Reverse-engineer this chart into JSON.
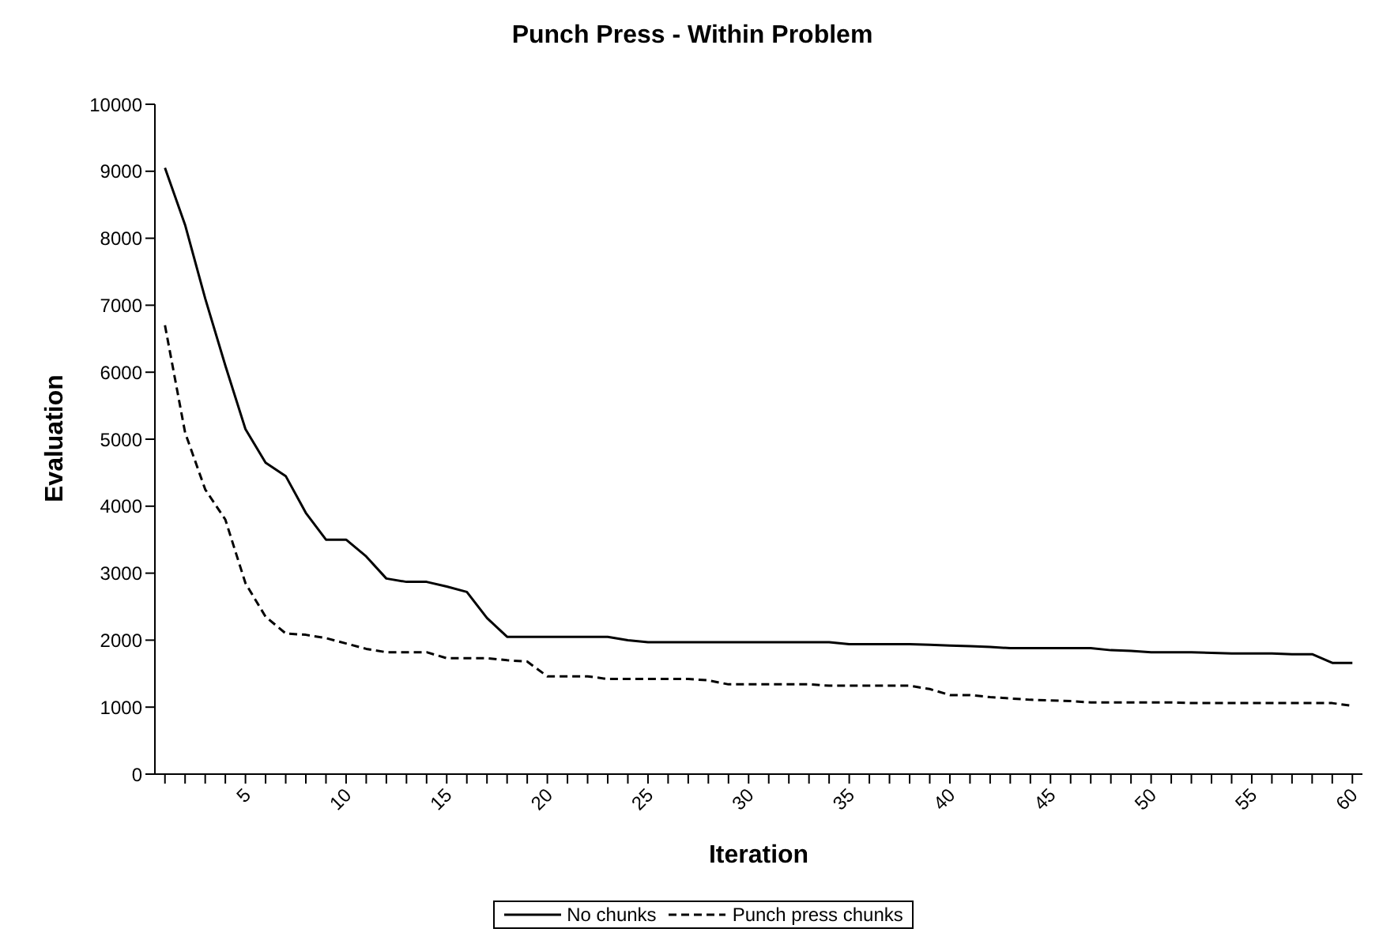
{
  "chart_data": {
    "type": "line",
    "title": "Punch Press - Within Problem",
    "xlabel": "Iteration",
    "ylabel": "Evaluation",
    "categories": [
      null,
      null,
      null,
      null,
      "5",
      null,
      null,
      null,
      null,
      "10",
      null,
      null,
      null,
      null,
      "15",
      null,
      null,
      null,
      null,
      "20",
      null,
      null,
      null,
      null,
      "25",
      null,
      null,
      null,
      null,
      "30",
      null,
      null,
      null,
      null,
      "35",
      null,
      null,
      null,
      null,
      "40",
      null,
      null,
      null,
      null,
      "45",
      null,
      null,
      null,
      null,
      "50",
      null,
      null,
      null,
      null,
      "55",
      null,
      null,
      null,
      null,
      "60"
    ],
    "series": [
      {
        "name": "No chunks",
        "color": "#000000",
        "line_style": "solid",
        "values": [
          9050,
          8200,
          7100,
          6100,
          5150,
          4650,
          4450,
          3900,
          3500,
          3500,
          3250,
          2920,
          2870,
          2870,
          2800,
          2720,
          2330,
          2050,
          2050,
          2050,
          2050,
          2050,
          2050,
          2000,
          1970,
          1970,
          1970,
          1970,
          1970,
          1970,
          1970,
          1970,
          1970,
          1970,
          1940,
          1940,
          1940,
          1940,
          1930,
          1920,
          1910,
          1900,
          1880,
          1880,
          1880,
          1880,
          1880,
          1850,
          1840,
          1820,
          1820,
          1820,
          1810,
          1800,
          1800,
          1800,
          1790,
          1790,
          1660,
          1660
        ]
      },
      {
        "name": "Punch press chunks",
        "color": "#000000",
        "line_style": "dashed",
        "values": [
          6700,
          5100,
          4250,
          3800,
          2850,
          2350,
          2100,
          2080,
          2030,
          1950,
          1870,
          1820,
          1820,
          1820,
          1730,
          1730,
          1730,
          1700,
          1680,
          1460,
          1460,
          1460,
          1420,
          1420,
          1420,
          1420,
          1420,
          1400,
          1340,
          1340,
          1340,
          1340,
          1340,
          1320,
          1320,
          1320,
          1320,
          1320,
          1270,
          1180,
          1180,
          1150,
          1130,
          1110,
          1100,
          1090,
          1070,
          1070,
          1070,
          1070,
          1070,
          1060,
          1060,
          1060,
          1060,
          1060,
          1060,
          1060,
          1060,
          1020
        ]
      }
    ],
    "ylim": [
      0,
      10000
    ],
    "yticks": [
      0,
      1000,
      2000,
      3000,
      4000,
      5000,
      6000,
      7000,
      8000,
      9000,
      10000
    ],
    "grid": false,
    "legend": "bottom",
    "marker": "none"
  }
}
